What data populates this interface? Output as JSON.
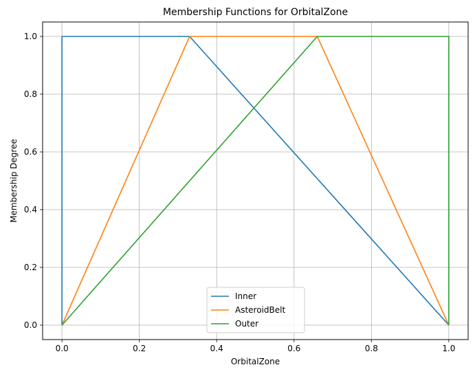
{
  "chart_data": {
    "type": "line",
    "title": "Membership Functions for OrbitalZone",
    "xlabel": "OrbitalZone",
    "ylabel": "Membership Degree",
    "xlim": [
      -0.05,
      1.05
    ],
    "ylim": [
      -0.05,
      1.05
    ],
    "xticks": [
      0.0,
      0.2,
      0.4,
      0.6,
      0.8,
      1.0
    ],
    "xtick_labels": [
      "0.0",
      "0.2",
      "0.4",
      "0.6",
      "0.8",
      "1.0"
    ],
    "yticks": [
      0.0,
      0.2,
      0.4,
      0.6,
      0.8,
      1.0
    ],
    "ytick_labels": [
      "0.0",
      "0.2",
      "0.4",
      "0.6",
      "0.8",
      "1.0"
    ],
    "grid": true,
    "legend_position": "lower center",
    "series": [
      {
        "name": "Inner",
        "color": "#1f77b4",
        "x": [
          0.0,
          0.0,
          0.33,
          1.0
        ],
        "y": [
          0.0,
          1.0,
          1.0,
          0.0
        ]
      },
      {
        "name": "AsteroidBelt",
        "color": "#ff7f0e",
        "x": [
          0.0,
          0.33,
          0.66,
          1.0
        ],
        "y": [
          0.0,
          1.0,
          1.0,
          0.0
        ]
      },
      {
        "name": "Outer",
        "color": "#2ca02c",
        "x": [
          0.0,
          0.66,
          1.0,
          1.0
        ],
        "y": [
          0.0,
          1.0,
          1.0,
          0.0
        ]
      }
    ]
  }
}
